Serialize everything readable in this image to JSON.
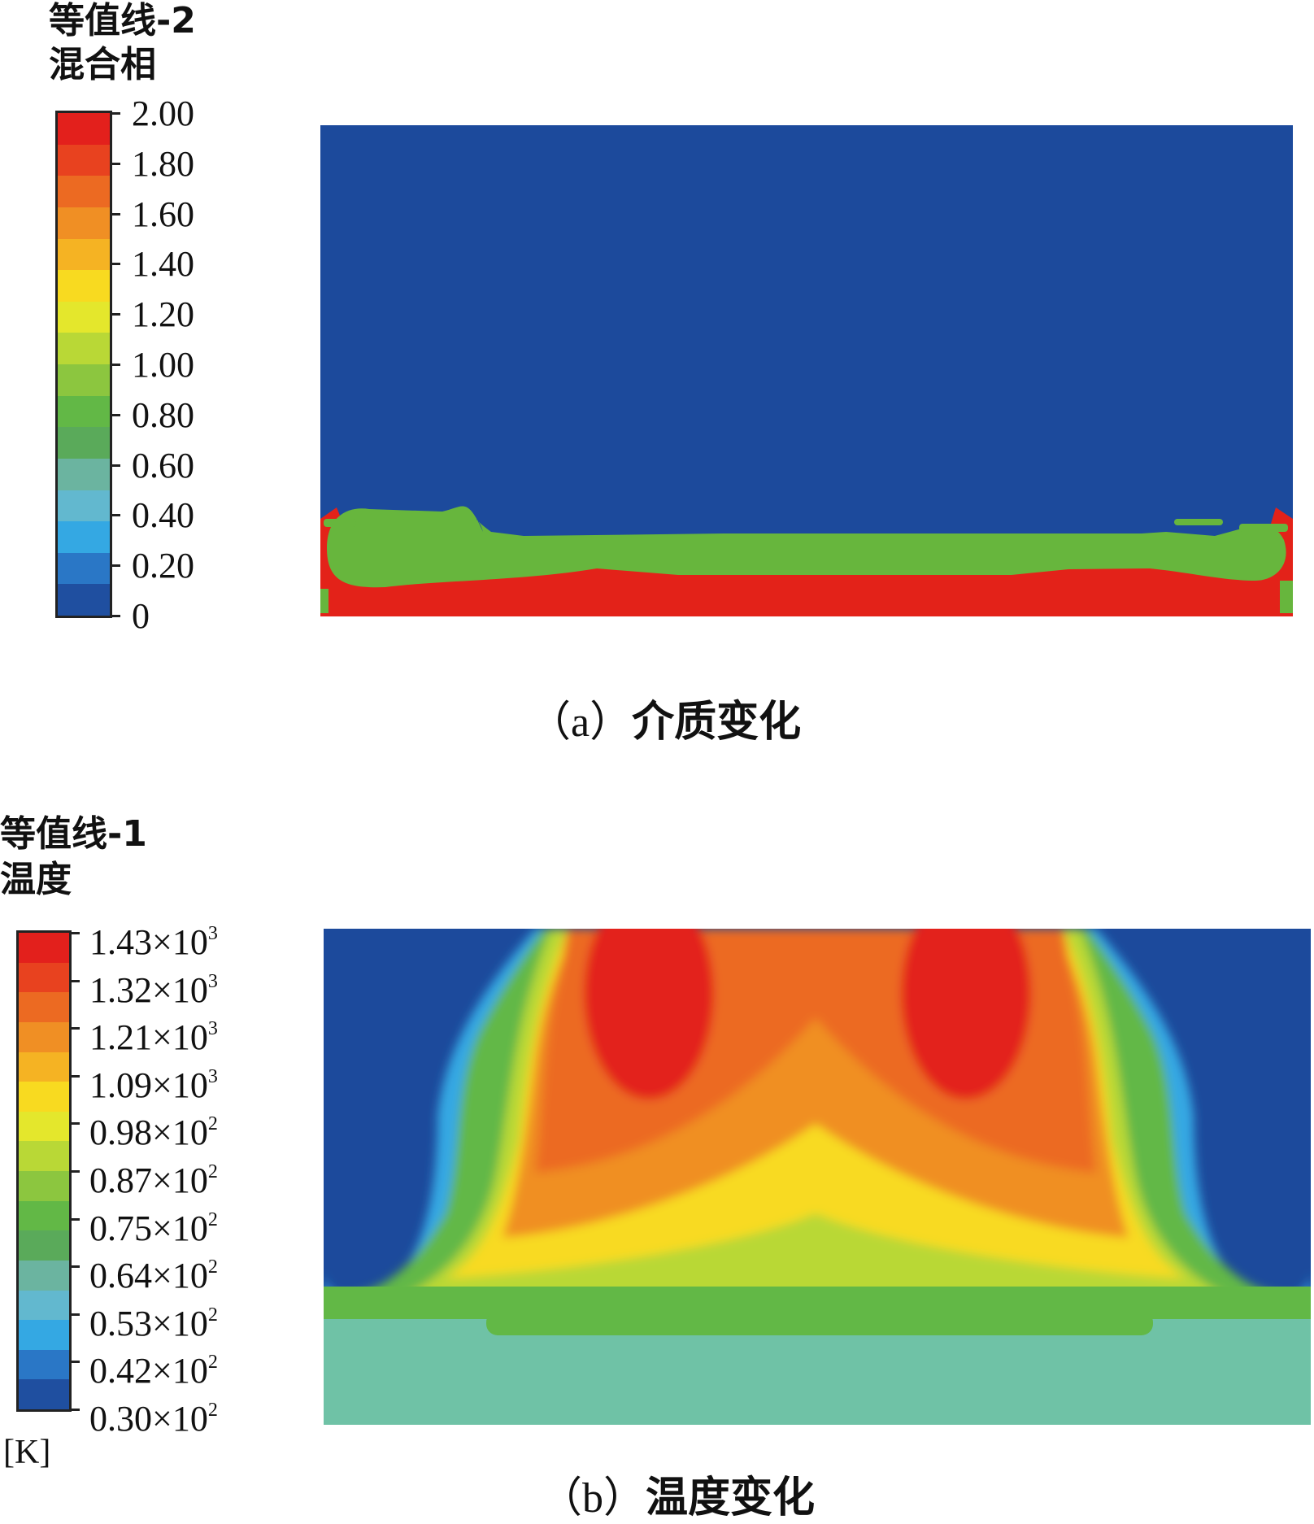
{
  "panel_a": {
    "legend_title": "等值线-2",
    "legend_subtitle": "混合相",
    "tick_labels": [
      "2.00",
      "1.80",
      "1.60",
      "1.40",
      "1.20",
      "1.00",
      "0.80",
      "0.60",
      "0.40",
      "0.20",
      "0"
    ],
    "caption_label": "（a）",
    "caption_text": "介质变化"
  },
  "panel_b": {
    "legend_title": "等值线-1",
    "legend_subtitle": "温度",
    "tick_values": [
      {
        "mantissa": "1.43",
        "exp": "3"
      },
      {
        "mantissa": "1.32",
        "exp": "3"
      },
      {
        "mantissa": "1.21",
        "exp": "3"
      },
      {
        "mantissa": "1.09",
        "exp": "3"
      },
      {
        "mantissa": "0.98",
        "exp": "2"
      },
      {
        "mantissa": "0.87",
        "exp": "2"
      },
      {
        "mantissa": "0.75",
        "exp": "2"
      },
      {
        "mantissa": "0.64",
        "exp": "2"
      },
      {
        "mantissa": "0.53",
        "exp": "2"
      },
      {
        "mantissa": "0.42",
        "exp": "2"
      },
      {
        "mantissa": "0.30",
        "exp": "2"
      }
    ],
    "unit": "[K]",
    "caption_label": "（b）",
    "caption_text": "温度变化"
  },
  "colors": {
    "colormap_top_to_bottom": [
      "#e3201c",
      "#e8421f",
      "#ec6a22",
      "#f08f24",
      "#f5b323",
      "#f8da20",
      "#e4e72c",
      "#b9d836",
      "#8cc63f",
      "#62b846",
      "#5aaa5a",
      "#6bb4a0",
      "#62b8cf",
      "#34a8e3",
      "#2a77c6",
      "#1f4fa0"
    ],
    "background_blue": "#1c4a9c",
    "green_band": "#67b63d",
    "red_band": "#e32219",
    "teal_base": "#6fc2a6"
  }
}
